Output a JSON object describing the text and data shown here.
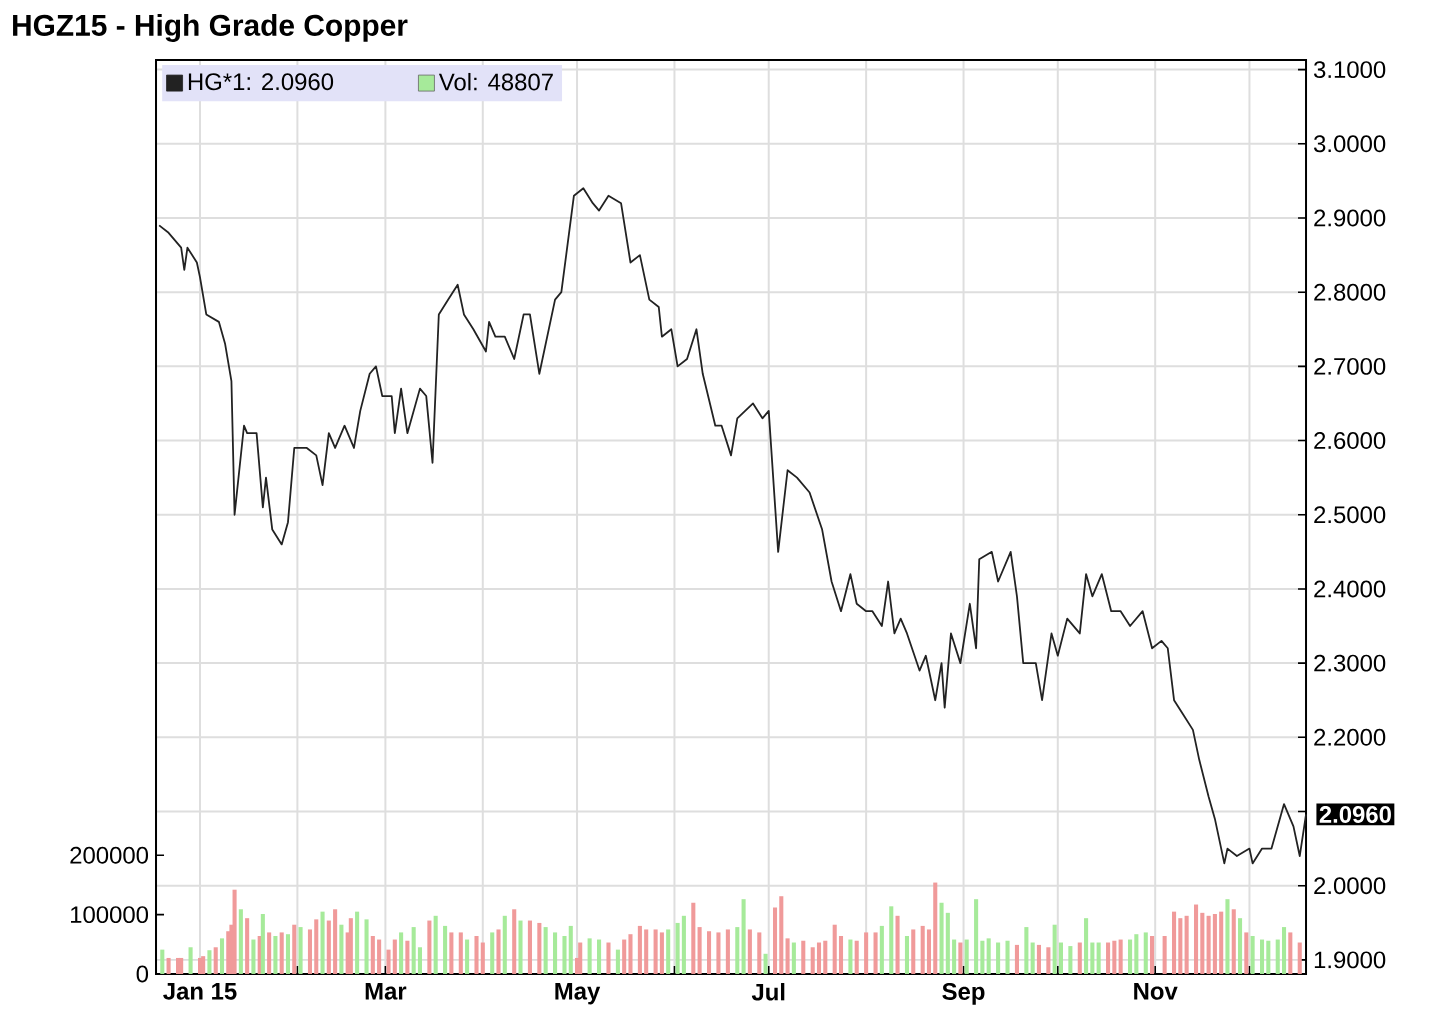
{
  "chart_data": {
    "type": "line",
    "title": "HGZ15 - High Grade Copper",
    "xlim": [
      "2014-12-18",
      "2015-12-19"
    ],
    "xticks": [
      {
        "value": "2015-01-01",
        "label": "Jan 15"
      },
      {
        "value": "2015-02-01",
        "label": null
      },
      {
        "value": "2015-03-01",
        "label": "Mar"
      },
      {
        "value": "2015-04-01",
        "label": null
      },
      {
        "value": "2015-05-01",
        "label": "May"
      },
      {
        "value": "2015-06-01",
        "label": null
      },
      {
        "value": "2015-07-01",
        "label": "Jul"
      },
      {
        "value": "2015-08-01",
        "label": null
      },
      {
        "value": "2015-09-01",
        "label": "Sep"
      },
      {
        "value": "2015-10-01",
        "label": null
      },
      {
        "value": "2015-11-01",
        "label": "Nov"
      },
      {
        "value": "2015-12-01",
        "label": null
      }
    ],
    "ylim": [
      1.881,
      3.113
    ],
    "yticks": [
      {
        "value": 1.9,
        "label": "1.9000"
      },
      {
        "value": 2.0,
        "label": "2.0000"
      },
      {
        "value": 2.1,
        "label": null
      },
      {
        "value": 2.2,
        "label": "2.2000"
      },
      {
        "value": 2.3,
        "label": "2.3000"
      },
      {
        "value": 2.4,
        "label": "2.4000"
      },
      {
        "value": 2.5,
        "label": "2.5000"
      },
      {
        "value": 2.6,
        "label": "2.6000"
      },
      {
        "value": 2.7,
        "label": "2.7000"
      },
      {
        "value": 2.8,
        "label": "2.8000"
      },
      {
        "value": 2.9,
        "label": "2.9000"
      },
      {
        "value": 3.0,
        "label": "3.0000"
      },
      {
        "value": 3.1,
        "label": "3.1000"
      }
    ],
    "y2lim": [
      0,
      1540000
    ],
    "y2ticks": [
      0,
      100000,
      200000
    ],
    "grid": true,
    "legend": "top left",
    "annotations": [
      {
        "text": "2.0960",
        "x": "2015-12-19",
        "y": 2.096
      }
    ],
    "series": [
      {
        "name": "HG*1: 2.0960",
        "color": "#222222",
        "x": [
          "2014-12-19",
          "2014-12-22",
          "2014-12-26",
          "2014-12-27",
          "2014-12-28",
          "2014-12-31",
          "2015-01-01",
          "2015-01-03",
          "2015-01-07",
          "2015-01-09",
          "2015-01-11",
          "2015-01-12",
          "2015-01-15",
          "2015-01-16",
          "2015-01-19",
          "2015-01-21",
          "2015-01-22",
          "2015-01-24",
          "2015-01-27",
          "2015-01-29",
          "2015-01-31",
          "2015-02-04",
          "2015-02-07",
          "2015-02-09",
          "2015-02-11",
          "2015-02-13",
          "2015-02-16",
          "2015-02-19",
          "2015-02-21",
          "2015-02-24",
          "2015-02-26",
          "2015-02-28",
          "2015-03-03",
          "2015-03-04",
          "2015-03-06",
          "2015-03-08",
          "2015-03-12",
          "2015-03-14",
          "2015-03-16",
          "2015-03-18",
          "2015-03-21",
          "2015-03-24",
          "2015-03-26",
          "2015-03-29",
          "2015-04-02",
          "2015-04-03",
          "2015-04-05",
          "2015-04-08",
          "2015-04-11",
          "2015-04-14",
          "2015-04-16",
          "2015-04-19",
          "2015-04-24",
          "2015-04-26",
          "2015-04-30",
          "2015-05-03",
          "2015-05-06",
          "2015-05-08",
          "2015-05-11",
          "2015-05-15",
          "2015-05-18",
          "2015-05-21",
          "2015-05-24",
          "2015-05-27",
          "2015-05-28",
          "2015-05-31",
          "2015-06-02",
          "2015-06-05",
          "2015-06-08",
          "2015-06-10",
          "2015-06-14",
          "2015-06-16",
          "2015-06-19",
          "2015-06-21",
          "2015-06-26",
          "2015-06-29",
          "2015-07-01",
          "2015-07-04",
          "2015-07-07",
          "2015-07-10",
          "2015-07-14",
          "2015-07-18",
          "2015-07-21",
          "2015-07-24",
          "2015-07-27",
          "2015-07-29",
          "2015-08-01",
          "2015-08-03",
          "2015-08-06",
          "2015-08-08",
          "2015-08-10",
          "2015-08-12",
          "2015-08-14",
          "2015-08-18",
          "2015-08-20",
          "2015-08-23",
          "2015-08-25",
          "2015-08-26",
          "2015-08-28",
          "2015-08-31",
          "2015-09-03",
          "2015-09-05",
          "2015-09-06",
          "2015-09-10",
          "2015-09-12",
          "2015-09-16",
          "2015-09-18",
          "2015-09-20",
          "2015-09-24",
          "2015-09-26",
          "2015-09-29",
          "2015-10-01",
          "2015-10-04",
          "2015-10-08",
          "2015-10-10",
          "2015-10-12",
          "2015-10-15",
          "2015-10-18",
          "2015-10-21",
          "2015-10-24",
          "2015-10-28",
          "2015-10-31",
          "2015-11-03",
          "2015-11-05",
          "2015-11-07",
          "2015-11-10",
          "2015-11-13",
          "2015-11-15",
          "2015-11-18",
          "2015-11-20",
          "2015-11-23",
          "2015-11-24",
          "2015-11-27",
          "2015-12-01",
          "2015-12-02",
          "2015-12-05",
          "2015-12-08",
          "2015-12-12",
          "2015-12-15",
          "2015-12-17",
          "2015-12-19"
        ],
        "values": [
          2.89,
          2.88,
          2.86,
          2.83,
          2.86,
          2.84,
          2.82,
          2.77,
          2.76,
          2.73,
          2.68,
          2.5,
          2.62,
          2.61,
          2.61,
          2.51,
          2.55,
          2.48,
          2.46,
          2.49,
          2.59,
          2.59,
          2.58,
          2.54,
          2.61,
          2.59,
          2.62,
          2.59,
          2.64,
          2.69,
          2.7,
          2.66,
          2.66,
          2.61,
          2.67,
          2.61,
          2.67,
          2.66,
          2.57,
          2.77,
          2.79,
          2.81,
          2.77,
          2.75,
          2.72,
          2.76,
          2.74,
          2.74,
          2.71,
          2.77,
          2.77,
          2.69,
          2.79,
          2.8,
          2.93,
          2.94,
          2.92,
          2.91,
          2.93,
          2.92,
          2.84,
          2.85,
          2.79,
          2.78,
          2.74,
          2.75,
          2.7,
          2.71,
          2.75,
          2.69,
          2.62,
          2.62,
          2.58,
          2.63,
          2.65,
          2.63,
          2.64,
          2.45,
          2.56,
          2.55,
          2.53,
          2.48,
          2.41,
          2.37,
          2.42,
          2.38,
          2.37,
          2.37,
          2.35,
          2.41,
          2.34,
          2.36,
          2.34,
          2.29,
          2.31,
          2.25,
          2.3,
          2.24,
          2.34,
          2.3,
          2.38,
          2.32,
          2.44,
          2.45,
          2.41,
          2.45,
          2.39,
          2.3,
          2.3,
          2.25,
          2.34,
          2.31,
          2.36,
          2.34,
          2.42,
          2.39,
          2.42,
          2.37,
          2.37,
          2.35,
          2.37,
          2.32,
          2.33,
          2.32,
          2.25,
          2.23,
          2.21,
          2.17,
          2.12,
          2.09,
          2.03,
          2.05,
          2.04,
          2.05,
          2.03,
          2.05,
          2.05,
          2.11,
          2.08,
          2.04,
          2.096
        ]
      },
      {
        "name": "Vol: 48807",
        "type": "bar",
        "axis": "y2",
        "color": "#a6ea9a",
        "x": [
          "2014-12-20",
          "2014-12-22",
          "2014-12-25",
          "2014-12-26",
          "2014-12-29",
          "2015-01-01",
          "2015-01-02",
          "2015-01-04",
          "2015-01-06",
          "2015-01-08",
          "2015-01-10",
          "2015-01-11",
          "2015-01-12",
          "2015-01-14",
          "2015-01-16",
          "2015-01-18",
          "2015-01-20",
          "2015-01-21",
          "2015-01-23",
          "2015-01-25",
          "2015-01-27",
          "2015-01-29",
          "2015-01-31",
          "2015-02-02",
          "2015-02-05",
          "2015-02-07",
          "2015-02-09",
          "2015-02-11",
          "2015-02-13",
          "2015-02-15",
          "2015-02-17",
          "2015-02-18",
          "2015-02-20",
          "2015-02-23",
          "2015-02-25",
          "2015-02-27",
          "2015-03-02",
          "2015-03-04",
          "2015-03-06",
          "2015-03-08",
          "2015-03-10",
          "2015-03-12",
          "2015-03-15",
          "2015-03-17",
          "2015-03-20",
          "2015-03-22",
          "2015-03-25",
          "2015-03-27",
          "2015-03-30",
          "2015-04-01",
          "2015-04-04",
          "2015-04-06",
          "2015-04-08",
          "2015-04-11",
          "2015-04-13",
          "2015-04-16",
          "2015-04-19",
          "2015-04-21",
          "2015-04-24",
          "2015-04-27",
          "2015-04-29",
          "2015-05-01",
          "2015-05-02",
          "2015-05-05",
          "2015-05-08",
          "2015-05-11",
          "2015-05-14",
          "2015-05-16",
          "2015-05-18",
          "2015-05-21",
          "2015-05-23",
          "2015-05-26",
          "2015-05-28",
          "2015-05-30",
          "2015-06-02",
          "2015-06-04",
          "2015-06-07",
          "2015-06-09",
          "2015-06-12",
          "2015-06-15",
          "2015-06-18",
          "2015-06-21",
          "2015-06-23",
          "2015-06-25",
          "2015-06-28",
          "2015-06-30",
          "2015-07-03",
          "2015-07-05",
          "2015-07-07",
          "2015-07-09",
          "2015-07-12",
          "2015-07-15",
          "2015-07-17",
          "2015-07-19",
          "2015-07-22",
          "2015-07-24",
          "2015-07-27",
          "2015-07-29",
          "2015-08-01",
          "2015-08-04",
          "2015-08-06",
          "2015-08-09",
          "2015-08-11",
          "2015-08-14",
          "2015-08-16",
          "2015-08-19",
          "2015-08-21",
          "2015-08-23",
          "2015-08-25",
          "2015-08-27",
          "2015-08-29",
          "2015-08-31",
          "2015-09-02",
          "2015-09-05",
          "2015-09-07",
          "2015-09-09",
          "2015-09-12",
          "2015-09-15",
          "2015-09-18",
          "2015-09-21",
          "2015-09-23",
          "2015-09-25",
          "2015-09-28",
          "2015-09-30",
          "2015-10-02",
          "2015-10-05",
          "2015-10-08",
          "2015-10-10",
          "2015-10-12",
          "2015-10-14",
          "2015-10-17",
          "2015-10-19",
          "2015-10-21",
          "2015-10-24",
          "2015-10-26",
          "2015-10-29",
          "2015-10-31",
          "2015-11-04",
          "2015-11-07",
          "2015-11-09",
          "2015-11-11",
          "2015-11-14",
          "2015-11-16",
          "2015-11-18",
          "2015-11-20",
          "2015-11-22",
          "2015-11-24",
          "2015-11-26",
          "2015-11-28",
          "2015-11-30",
          "2015-12-02",
          "2015-12-05",
          "2015-12-07",
          "2015-12-10",
          "2015-12-12",
          "2015-12-14",
          "2015-12-17"
        ],
        "values": [
          41000,
          27000,
          27000,
          27000,
          45000,
          27000,
          30000,
          40000,
          45000,
          60000,
          72000,
          83000,
          142000,
          109000,
          94000,
          58000,
          64000,
          101000,
          70000,
          64000,
          70000,
          67000,
          83000,
          79000,
          75000,
          92000,
          105000,
          90000,
          109000,
          83000,
          70000,
          94000,
          105000,
          92000,
          64000,
          58000,
          41000,
          58000,
          70000,
          56000,
          79000,
          45000,
          90000,
          98000,
          81000,
          70000,
          70000,
          58000,
          64000,
          53000,
          70000,
          75000,
          98000,
          109000,
          90000,
          90000,
          86000,
          79000,
          70000,
          64000,
          81000,
          27000,
          53000,
          60000,
          58000,
          53000,
          41000,
          58000,
          67000,
          81000,
          75000,
          75000,
          70000,
          75000,
          86000,
          98000,
          120000,
          79000,
          72000,
          70000,
          75000,
          79000,
          126000,
          75000,
          70000,
          34000,
          112000,
          131000,
          60000,
          53000,
          56000,
          45000,
          53000,
          56000,
          83000,
          64000,
          58000,
          56000,
          70000,
          70000,
          81000,
          114000,
          98000,
          64000,
          75000,
          81000,
          75000,
          154000,
          120000,
          103000,
          58000,
          53000,
          58000,
          126000,
          56000,
          60000,
          53000,
          56000,
          49000,
          79000,
          53000,
          49000,
          45000,
          83000,
          53000,
          47000,
          53000,
          94000,
          53000,
          53000,
          53000,
          56000,
          58000,
          58000,
          67000,
          70000,
          64000,
          64000,
          105000,
          94000,
          98000,
          117000,
          103000,
          98000,
          101000,
          105000,
          126000,
          109000,
          94000,
          70000,
          64000,
          58000,
          56000,
          58000,
          79000,
          70000,
          53000
        ],
        "colors": [
          "#a6ea9a",
          "#f09a9a",
          "#f09a9a",
          "#f09a9a",
          "#a6ea9a",
          "#f09a9a",
          "#f09a9a",
          "#a6ea9a",
          "#f09a9a",
          "#a6ea9a",
          "#f09a9a",
          "#f09a9a",
          "#f09a9a",
          "#a6ea9a",
          "#f09a9a",
          "#a6ea9a",
          "#f09a9a",
          "#a6ea9a",
          "#f09a9a",
          "#a6ea9a",
          "#f09a9a",
          "#a6ea9a",
          "#f09a9a",
          "#a6ea9a",
          "#f09a9a",
          "#f09a9a",
          "#a6ea9a",
          "#f09a9a",
          "#f09a9a",
          "#a6ea9a",
          "#f09a9a",
          "#f09a9a",
          "#a6ea9a",
          "#a6ea9a",
          "#f09a9a",
          "#f09a9a",
          "#f09a9a",
          "#f09a9a",
          "#a6ea9a",
          "#f09a9a",
          "#a6ea9a",
          "#a6ea9a",
          "#f09a9a",
          "#a6ea9a",
          "#a6ea9a",
          "#f09a9a",
          "#f09a9a",
          "#a6ea9a",
          "#f09a9a",
          "#f09a9a",
          "#a6ea9a",
          "#f09a9a",
          "#a6ea9a",
          "#f09a9a",
          "#a6ea9a",
          "#f09a9a",
          "#f09a9a",
          "#a6ea9a",
          "#a6ea9a",
          "#a6ea9a",
          "#a6ea9a",
          "#f09a9a",
          "#f09a9a",
          "#a6ea9a",
          "#a6ea9a",
          "#f09a9a",
          "#a6ea9a",
          "#f09a9a",
          "#f09a9a",
          "#f09a9a",
          "#f09a9a",
          "#f09a9a",
          "#f09a9a",
          "#a6ea9a",
          "#a6ea9a",
          "#a6ea9a",
          "#f09a9a",
          "#f09a9a",
          "#f09a9a",
          "#f09a9a",
          "#f09a9a",
          "#a6ea9a",
          "#a6ea9a",
          "#f09a9a",
          "#f09a9a",
          "#a6ea9a",
          "#f09a9a",
          "#f09a9a",
          "#f09a9a",
          "#a6ea9a",
          "#f09a9a",
          "#f09a9a",
          "#f09a9a",
          "#f09a9a",
          "#f09a9a",
          "#f09a9a",
          "#a6ea9a",
          "#f09a9a",
          "#f09a9a",
          "#f09a9a",
          "#a6ea9a",
          "#a6ea9a",
          "#f09a9a",
          "#a6ea9a",
          "#f09a9a",
          "#f09a9a",
          "#f09a9a",
          "#f09a9a",
          "#a6ea9a",
          "#a6ea9a",
          "#a6ea9a",
          "#f09a9a",
          "#a6ea9a",
          "#a6ea9a",
          "#a6ea9a",
          "#a6ea9a",
          "#a6ea9a",
          "#a6ea9a",
          "#f09a9a",
          "#a6ea9a",
          "#a6ea9a",
          "#f09a9a",
          "#f09a9a",
          "#a6ea9a",
          "#a6ea9a",
          "#a6ea9a",
          "#f09a9a",
          "#a6ea9a",
          "#a6ea9a",
          "#a6ea9a",
          "#f09a9a",
          "#f09a9a",
          "#f09a9a",
          "#a6ea9a",
          "#a6ea9a",
          "#a6ea9a",
          "#f09a9a",
          "#f09a9a",
          "#f09a9a",
          "#f09a9a",
          "#f09a9a",
          "#f09a9a",
          "#f09a9a",
          "#f09a9a",
          "#f09a9a",
          "#f09a9a",
          "#a6ea9a",
          "#f09a9a",
          "#a6ea9a",
          "#f09a9a",
          "#a6ea9a",
          "#a6ea9a",
          "#a6ea9a",
          "#a6ea9a",
          "#a6ea9a",
          "#f09a9a",
          "#f09a9a"
        ]
      }
    ]
  }
}
